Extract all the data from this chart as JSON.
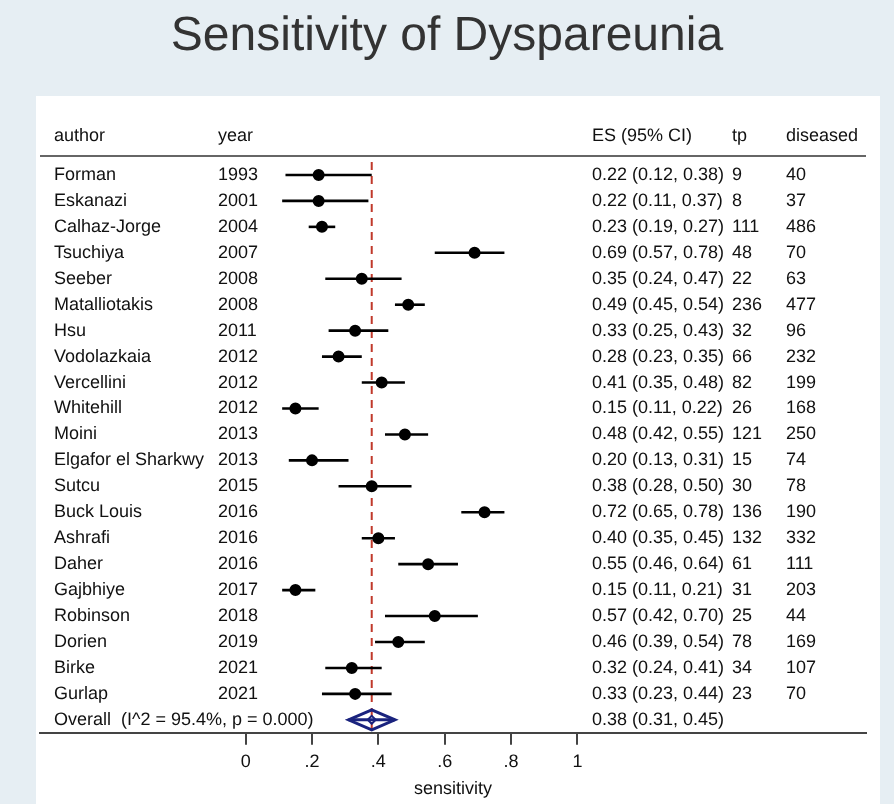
{
  "chart_data": {
    "type": "scatter",
    "title": "Sensitivity of Dyspareunia",
    "xlabel": "sensitivity",
    "orientation": "horizontal",
    "categories": [
      "Forman",
      "Eskanazi",
      "Calhaz-Jorge",
      "Tsuchiya",
      "Seeber",
      "Matalliotakis",
      "Hsu",
      "Vodolazkaia",
      "Vercellini",
      "Whitehill",
      "Moini",
      "Elgafor el Sharkwy",
      "Sutcu",
      "Buck Louis",
      "Ashrafi",
      "Daher",
      "Gajbhiye",
      "Robinson",
      "Dorien",
      "Birke",
      "Gurlap",
      "Overall  (I^2 = 95.4%, p = 0.000)"
    ],
    "series": [
      {
        "color": "#000000",
        "marker": "circle",
        "values": [
          0.22,
          0.22,
          0.23,
          0.69,
          0.35,
          0.49,
          0.33,
          0.28,
          0.41,
          0.15,
          0.48,
          0.2,
          0.38,
          0.72,
          0.4,
          0.55,
          0.15,
          0.57,
          0.46,
          0.32,
          0.33,
          null
        ],
        "errors": [
          [
            0.12,
            0.38
          ],
          [
            0.11,
            0.37
          ],
          [
            0.19,
            0.27
          ],
          [
            0.57,
            0.78
          ],
          [
            0.24,
            0.47
          ],
          [
            0.45,
            0.54
          ],
          [
            0.25,
            0.43
          ],
          [
            0.23,
            0.35
          ],
          [
            0.35,
            0.48
          ],
          [
            0.11,
            0.22
          ],
          [
            0.42,
            0.55
          ],
          [
            0.13,
            0.31
          ],
          [
            0.28,
            0.5
          ],
          [
            0.65,
            0.78
          ],
          [
            0.35,
            0.45
          ],
          [
            0.46,
            0.64
          ],
          [
            0.11,
            0.21
          ],
          [
            0.42,
            0.7
          ],
          [
            0.39,
            0.54
          ],
          [
            0.24,
            0.41
          ],
          [
            0.23,
            0.44
          ],
          null
        ]
      },
      {
        "color": "#1a237e",
        "marker": "diamond",
        "values": [
          null,
          null,
          null,
          null,
          null,
          null,
          null,
          null,
          null,
          null,
          null,
          null,
          null,
          null,
          null,
          null,
          null,
          null,
          null,
          null,
          null,
          0.38
        ],
        "errors": [
          null,
          null,
          null,
          null,
          null,
          null,
          null,
          null,
          null,
          null,
          null,
          null,
          null,
          null,
          null,
          null,
          null,
          null,
          null,
          null,
          null,
          [
            0.31,
            0.45
          ]
        ]
      }
    ],
    "xlim": [
      -0.62,
      1.87
    ],
    "xticks": [
      0,
      {
        "value": 0.2,
        "label": ".2"
      },
      {
        "value": 0.4,
        "label": ".4"
      },
      {
        "value": 0.6,
        "label": ".6"
      },
      {
        "value": 0.8,
        "label": ".8"
      },
      1
    ],
    "ref_lines": [
      {
        "axis": "x",
        "value": 0.38,
        "color": "#c0392b",
        "line_style": "dashed"
      }
    ],
    "annotations": [
      "author",
      "year",
      "ES (95% CI)",
      "tp",
      "diseased",
      "1993",
      "0.22 (0.12, 0.38)",
      "9",
      "40",
      "2001",
      "0.22 (0.11, 0.37)",
      "8",
      "37",
      "2004",
      "0.23 (0.19, 0.27)",
      "111",
      "486",
      "2007",
      "0.69 (0.57, 0.78)",
      "48",
      "70",
      "2008",
      "0.35 (0.24, 0.47)",
      "22",
      "63",
      "2008",
      "0.49 (0.45, 0.54)",
      "236",
      "477",
      "2011",
      "0.33 (0.25, 0.43)",
      "32",
      "96",
      "2012",
      "0.28 (0.23, 0.35)",
      "66",
      "232",
      "2012",
      "0.41 (0.35, 0.48)",
      "82",
      "199",
      "2012",
      "0.15 (0.11, 0.22)",
      "26",
      "168",
      "2013",
      "0.48 (0.42, 0.55)",
      "121",
      "250",
      "2013",
      "0.20 (0.13, 0.31)",
      "15",
      "74",
      "2015",
      "0.38 (0.28, 0.50)",
      "30",
      "78",
      "2016",
      "0.72 (0.65, 0.78)",
      "136",
      "190",
      "2016",
      "0.40 (0.35, 0.45)",
      "132",
      "332",
      "2016",
      "0.55 (0.46, 0.64)",
      "61",
      "111",
      "2017",
      "0.15 (0.11, 0.21)",
      "31",
      "203",
      "2018",
      "0.57 (0.42, 0.70)",
      "25",
      "44",
      "2019",
      "0.46 (0.39, 0.54)",
      "78",
      "169",
      "2021",
      "0.32 (0.24, 0.41)",
      "34",
      "107",
      "2021",
      "0.33 (0.23, 0.44)",
      "23",
      "70",
      "0.38 (0.31, 0.45)"
    ]
  }
}
